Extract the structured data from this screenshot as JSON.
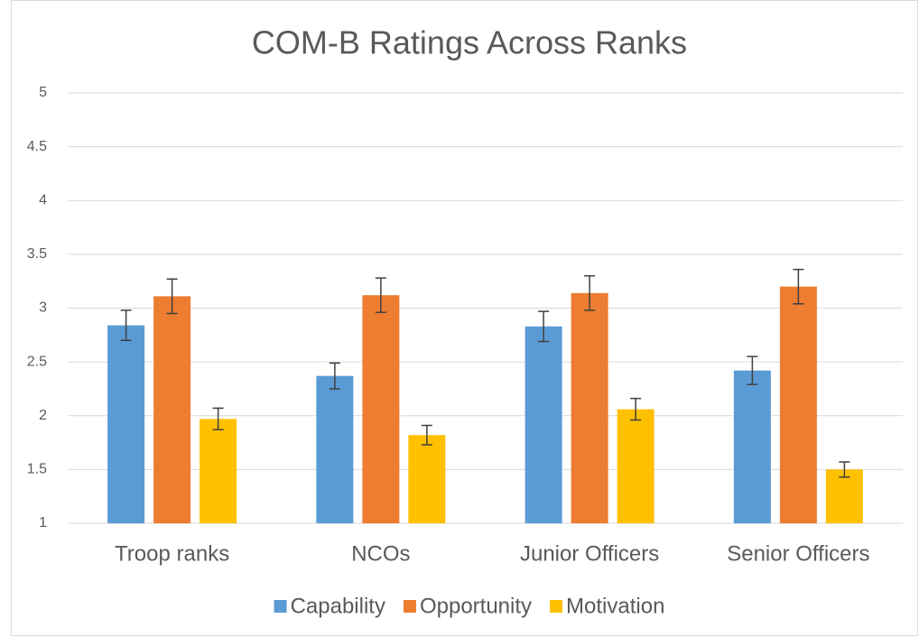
{
  "chart_data": {
    "type": "bar",
    "title": "COM-B Ratings Across Ranks",
    "categories": [
      "Troop ranks",
      "NCOs",
      "Junior Officers",
      "Senior Officers"
    ],
    "series": [
      {
        "name": "Capability",
        "color": "#5b9bd5",
        "values": [
          2.84,
          2.37,
          2.83,
          2.42
        ],
        "errors": [
          0.14,
          0.12,
          0.14,
          0.13
        ]
      },
      {
        "name": "Opportunity",
        "color": "#ed7d31",
        "values": [
          3.11,
          3.12,
          3.14,
          3.2
        ],
        "errors": [
          0.16,
          0.16,
          0.16,
          0.16
        ]
      },
      {
        "name": "Motivation",
        "color": "#ffc000",
        "values": [
          1.97,
          1.82,
          2.06,
          1.5
        ],
        "errors": [
          0.1,
          0.09,
          0.1,
          0.07
        ]
      }
    ],
    "ylim": [
      1,
      5
    ],
    "yticks": [
      1,
      1.5,
      2,
      2.5,
      3,
      3.5,
      4,
      4.5,
      5
    ],
    "grid": true,
    "legend": "bottom"
  }
}
